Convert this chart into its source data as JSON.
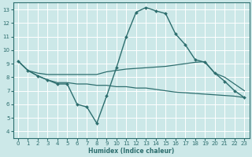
{
  "bg_color": "#cce8e8",
  "grid_color": "#ffffff",
  "line_color": "#2d6e6e",
  "xlabel": "Humidex (Indice chaleur)",
  "xlim": [
    -0.5,
    23.5
  ],
  "ylim": [
    3.5,
    13.5
  ],
  "yticks": [
    4,
    5,
    6,
    7,
    8,
    9,
    10,
    11,
    12,
    13
  ],
  "xticks": [
    0,
    1,
    2,
    3,
    4,
    5,
    6,
    7,
    8,
    9,
    10,
    11,
    12,
    13,
    14,
    15,
    16,
    17,
    18,
    19,
    20,
    21,
    22,
    23
  ],
  "series": [
    {
      "x": [
        0,
        1,
        2,
        3,
        4,
        5,
        6,
        7,
        8,
        9,
        10,
        11,
        12,
        13,
        14,
        15,
        16,
        17,
        18,
        19,
        20,
        21,
        22,
        23
      ],
      "y": [
        9.2,
        8.5,
        8.1,
        7.8,
        7.5,
        7.5,
        6.0,
        5.8,
        4.6,
        6.6,
        8.7,
        11.0,
        12.8,
        13.15,
        12.9,
        12.7,
        11.2,
        10.4,
        9.3,
        9.1,
        8.3,
        7.7,
        7.0,
        6.5
      ],
      "marker": "D",
      "markersize": 2.0,
      "linewidth": 1.0,
      "draw_marker": true
    },
    {
      "x": [
        0,
        1,
        2,
        3,
        4,
        5,
        6,
        7,
        8,
        9,
        10,
        11,
        12,
        13,
        14,
        15,
        16,
        17,
        18,
        19,
        20,
        21,
        22,
        23
      ],
      "y": [
        9.2,
        8.5,
        8.3,
        8.2,
        8.2,
        8.2,
        8.2,
        8.2,
        8.2,
        8.4,
        8.5,
        8.6,
        8.65,
        8.7,
        8.75,
        8.8,
        8.9,
        9.0,
        9.1,
        9.15,
        8.3,
        8.0,
        7.5,
        7.0
      ],
      "marker": null,
      "markersize": 0,
      "linewidth": 0.9,
      "draw_marker": false
    },
    {
      "x": [
        0,
        1,
        2,
        3,
        4,
        5,
        6,
        7,
        8,
        9,
        10,
        11,
        12,
        13,
        14,
        15,
        16,
        17,
        18,
        19,
        20,
        21,
        22,
        23
      ],
      "y": [
        9.2,
        8.5,
        8.1,
        7.8,
        7.6,
        7.6,
        7.5,
        7.5,
        7.4,
        7.4,
        7.3,
        7.3,
        7.2,
        7.2,
        7.1,
        7.0,
        6.9,
        6.85,
        6.8,
        6.75,
        6.7,
        6.65,
        6.6,
        6.5
      ],
      "marker": null,
      "markersize": 0,
      "linewidth": 0.9,
      "draw_marker": false
    }
  ],
  "tick_fontsize": 5,
  "xlabel_fontsize": 5.5,
  "xlabel_color": "#2d6e6e",
  "spine_color": "#2d6e6e"
}
